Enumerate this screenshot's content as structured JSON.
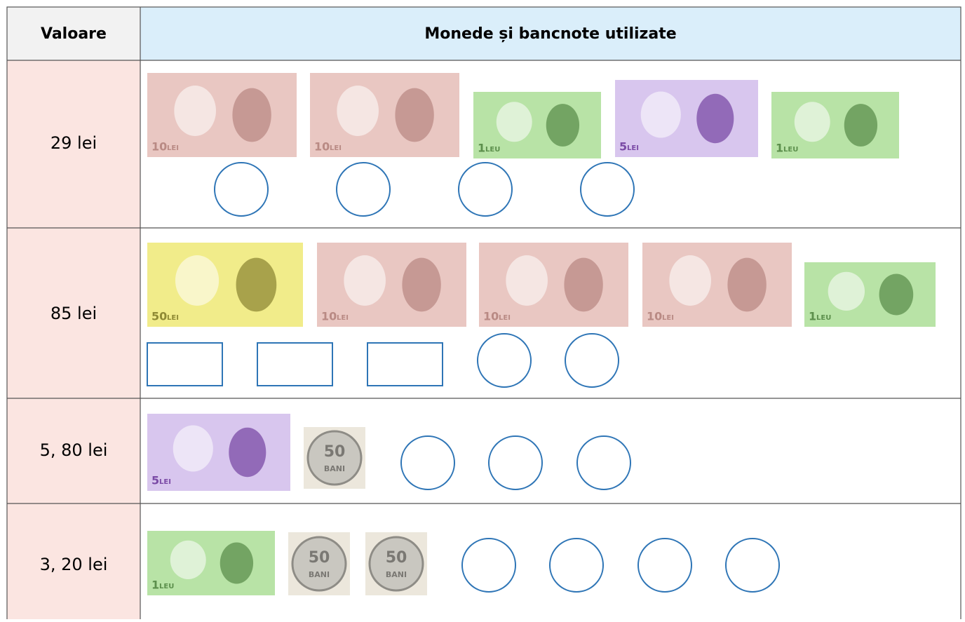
{
  "header": {
    "columns": [
      "Valoare",
      "Monede și bancnote utilizate"
    ]
  },
  "table": {
    "rows": [
      {
        "value": "29 lei",
        "items": [
          {
            "kind": "banknote",
            "number": "10",
            "unit": "LEI"
          },
          {
            "kind": "banknote",
            "number": "10",
            "unit": "LEI"
          },
          {
            "kind": "banknote",
            "number": "1",
            "unit": "LEU"
          },
          {
            "kind": "banknote",
            "number": "5",
            "unit": "LEI"
          },
          {
            "kind": "banknote",
            "number": "1",
            "unit": "LEU"
          }
        ]
      },
      {
        "value": "85 lei",
        "items": [
          {
            "kind": "banknote",
            "number": "50",
            "unit": "LEI"
          },
          {
            "kind": "banknote",
            "number": "10",
            "unit": "LEI"
          },
          {
            "kind": "banknote",
            "number": "10",
            "unit": "LEI"
          },
          {
            "kind": "banknote",
            "number": "10",
            "unit": "LEI"
          },
          {
            "kind": "banknote",
            "number": "1",
            "unit": "LEU"
          }
        ]
      },
      {
        "value": "5, 80 lei",
        "items": [
          {
            "kind": "banknote",
            "number": "5",
            "unit": "LEI"
          },
          {
            "kind": "coin",
            "number": "50",
            "unit": "BANI"
          }
        ]
      },
      {
        "value": "3, 20 lei",
        "items": [
          {
            "kind": "banknote",
            "number": "1",
            "unit": "LEU"
          },
          {
            "kind": "coin",
            "number": "50",
            "unit": "BANI"
          },
          {
            "kind": "coin",
            "number": "50",
            "unit": "BANI"
          }
        ]
      }
    ]
  }
}
